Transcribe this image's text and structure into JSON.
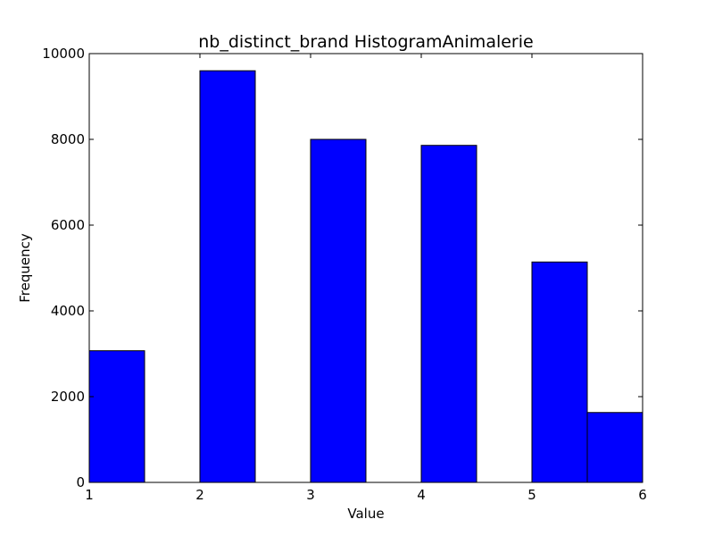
{
  "chart_data": {
    "type": "bar",
    "title": "nb_distinct_brand HistogramAnimalerie",
    "xlabel": "Value",
    "ylabel": "Frequency",
    "xlim": [
      1,
      6
    ],
    "ylim": [
      0,
      10000
    ],
    "xticks": [
      "1",
      "2",
      "3",
      "4",
      "5",
      "6"
    ],
    "yticks": [
      "0",
      "2000",
      "4000",
      "6000",
      "8000",
      "10000"
    ],
    "bar_color": "#0000ff",
    "bins": [
      {
        "start": 1.0,
        "end": 1.5,
        "value": 3070
      },
      {
        "start": 2.0,
        "end": 2.5,
        "value": 9600
      },
      {
        "start": 3.0,
        "end": 3.5,
        "value": 8000
      },
      {
        "start": 4.0,
        "end": 4.5,
        "value": 7860
      },
      {
        "start": 5.0,
        "end": 5.5,
        "value": 5140
      },
      {
        "start": 5.5,
        "end": 6.0,
        "value": 1630
      }
    ],
    "grid": false
  }
}
